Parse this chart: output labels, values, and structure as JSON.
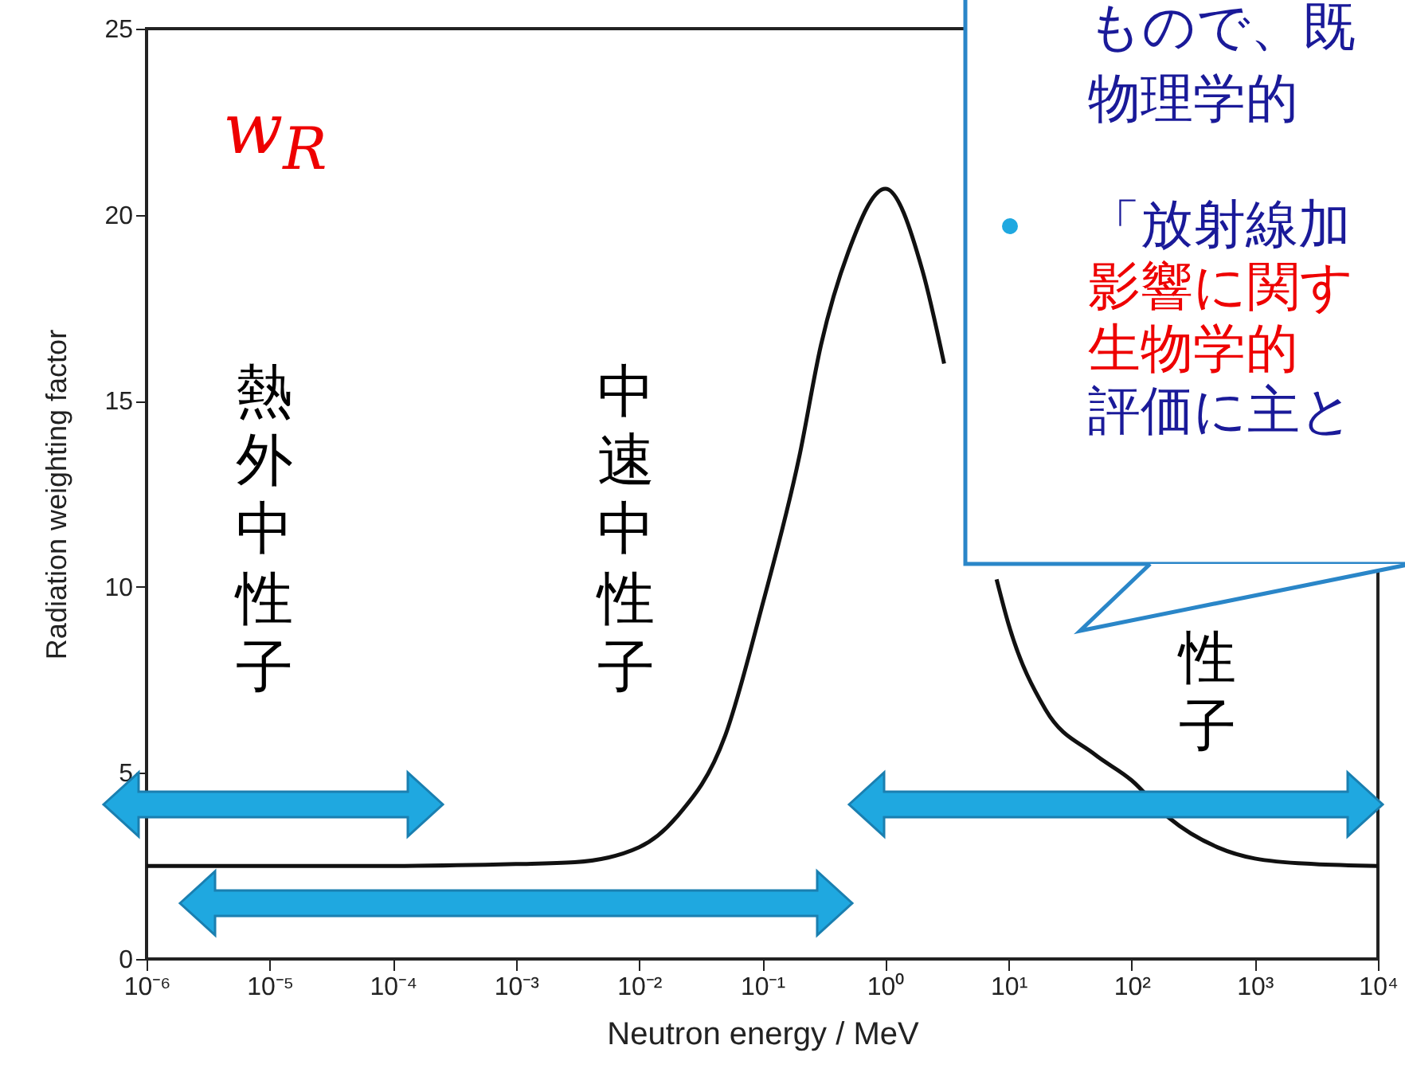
{
  "chart_data": {
    "type": "line",
    "xlabel": "Neutron energy / MeV",
    "ylabel": "Radiation weighting factor",
    "x": [
      1e-06,
      1e-05,
      0.0001,
      0.001,
      0.003,
      0.01,
      0.02,
      0.05,
      0.1,
      0.2,
      0.3,
      0.5,
      1,
      2,
      3,
      5,
      8,
      10,
      20,
      50,
      100,
      200,
      500,
      1000,
      3000,
      10000
    ],
    "series": [
      {
        "color": "#111111",
        "values": [
          2.5,
          2.5,
          2.5,
          2.55,
          2.6,
          3.0,
          3.8,
          6.0,
          9.5,
          13.5,
          16.5,
          19.0,
          20.7,
          18.5,
          16.0,
          null,
          10.2,
          9.0,
          6.7,
          5.5,
          4.8,
          3.8,
          3.0,
          2.7,
          2.55,
          2.5
        ]
      }
    ],
    "log": "x",
    "xlim": [
      1e-06,
      10000
    ],
    "ylim": [
      0,
      25
    ],
    "xticks": [
      {
        "value": 1e-06,
        "label": "10⁻⁶"
      },
      {
        "value": 1e-05,
        "label": "10⁻⁵"
      },
      {
        "value": 0.0001,
        "label": "10⁻⁴"
      },
      {
        "value": 0.001,
        "label": "10⁻³"
      },
      {
        "value": 0.01,
        "label": "10⁻²"
      },
      {
        "value": 0.1,
        "label": "10⁻¹"
      },
      {
        "value": 1,
        "label": "10⁰"
      },
      {
        "value": 10,
        "label": "10¹"
      },
      {
        "value": 100,
        "label": "10²"
      },
      {
        "value": 1000,
        "label": "10³"
      },
      {
        "value": 10000,
        "label": "10⁴"
      }
    ],
    "yticks": [
      0,
      5,
      10,
      15,
      20,
      25
    ],
    "grid": false,
    "marker": "none",
    "line_style": "solid",
    "annotations": [
      "w$_{R}$",
      "熱外中性子",
      "中速中性子",
      "性子",
      "もので、既",
      "物理学的",
      "「放射線加",
      "影響に関す",
      "生物学的",
      "評価に主と"
    ]
  }
}
